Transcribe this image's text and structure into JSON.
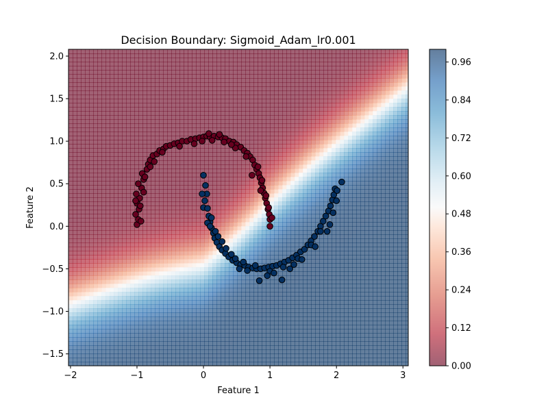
{
  "chart_data": {
    "type": "scatter",
    "title": "Decision Boundary: Sigmoid_Adam_lr0.001",
    "xlabel": "Feature 1",
    "ylabel": "Feature 2",
    "xlim": [
      -2.03,
      3.08
    ],
    "ylim": [
      -1.64,
      2.08
    ],
    "x_ticks": [
      -2,
      -1,
      0,
      1,
      2,
      3
    ],
    "y_ticks": [
      -1.5,
      -1.0,
      -0.5,
      0.0,
      0.5,
      1.0,
      1.5,
      2.0
    ],
    "x_tick_labels": [
      "−2",
      "−1",
      "0",
      "1",
      "2",
      "3"
    ],
    "y_tick_labels": [
      "−1.5",
      "−1.0",
      "−0.5",
      "0.0",
      "0.5",
      "1.0",
      "1.5",
      "2.0"
    ],
    "grid": false,
    "background": "filled contour of predicted probability, RdBu colormap, alpha 0.6",
    "colorbar": {
      "ticks": [
        0.0,
        0.12,
        0.24,
        0.36,
        0.48,
        0.6,
        0.72,
        0.84,
        0.96
      ],
      "tick_labels": [
        "0.00",
        "0.12",
        "0.24",
        "0.36",
        "0.48",
        "0.60",
        "0.72",
        "0.84",
        "0.96"
      ],
      "range": [
        0,
        1
      ]
    },
    "series": [
      {
        "class": 0,
        "color": "#67001f",
        "points": [
          [
            -1.0,
            0.02
          ],
          [
            -0.98,
            0.08
          ],
          [
            -1.02,
            0.14
          ],
          [
            -0.97,
            0.2
          ],
          [
            -1.0,
            0.27
          ],
          [
            -0.96,
            0.33
          ],
          [
            -1.01,
            0.38
          ],
          [
            -0.93,
            0.45
          ],
          [
            -0.98,
            0.5
          ],
          [
            -0.9,
            0.55
          ],
          [
            -0.92,
            0.62
          ],
          [
            -0.85,
            0.67
          ],
          [
            -0.83,
            0.73
          ],
          [
            -0.8,
            0.78
          ],
          [
            -0.76,
            0.83
          ],
          [
            -0.7,
            0.85
          ],
          [
            -0.66,
            0.89
          ],
          [
            -0.6,
            0.91
          ],
          [
            -0.56,
            0.94
          ],
          [
            -0.5,
            0.95
          ],
          [
            -0.44,
            0.97
          ],
          [
            -0.38,
            0.98
          ],
          [
            -0.32,
            1.0
          ],
          [
            -0.25,
            1.0
          ],
          [
            -0.19,
            1.02
          ],
          [
            -0.12,
            1.03
          ],
          [
            -0.06,
            1.04
          ],
          [
            0.0,
            1.05
          ],
          [
            0.05,
            1.06
          ],
          [
            0.1,
            1.05
          ],
          [
            0.16,
            1.06
          ],
          [
            0.22,
            1.05
          ],
          [
            0.28,
            1.04
          ],
          [
            0.33,
            1.03
          ],
          [
            0.39,
            1.0
          ],
          [
            0.45,
            0.99
          ],
          [
            0.5,
            0.96
          ],
          [
            0.56,
            0.93
          ],
          [
            0.61,
            0.89
          ],
          [
            0.66,
            0.86
          ],
          [
            0.7,
            0.82
          ],
          [
            0.74,
            0.78
          ],
          [
            0.77,
            0.72
          ],
          [
            0.8,
            0.67
          ],
          [
            0.83,
            0.62
          ],
          [
            0.85,
            0.57
          ],
          [
            0.87,
            0.51
          ],
          [
            0.89,
            0.45
          ],
          [
            0.91,
            0.39
          ],
          [
            0.93,
            0.33
          ],
          [
            0.95,
            0.27
          ],
          [
            0.97,
            0.2
          ],
          [
            0.99,
            0.14
          ],
          [
            1.0,
            0.08
          ],
          [
            1.0,
            0.0
          ],
          [
            -0.94,
            0.06
          ],
          [
            -0.95,
            0.24
          ],
          [
            -0.9,
            0.4
          ],
          [
            -0.88,
            0.58
          ],
          [
            -0.74,
            0.76
          ],
          [
            -0.62,
            0.87
          ],
          [
            -0.36,
            0.94
          ],
          [
            -0.02,
            1.0
          ],
          [
            0.13,
            1.01
          ],
          [
            0.31,
            0.99
          ],
          [
            0.48,
            0.92
          ],
          [
            0.64,
            0.82
          ],
          [
            0.82,
            0.7
          ],
          [
            0.88,
            0.54
          ],
          [
            0.94,
            0.36
          ],
          [
            0.98,
            0.22
          ],
          [
            0.08,
            1.09
          ],
          [
            0.24,
            1.08
          ],
          [
            -0.14,
            0.97
          ],
          [
            0.42,
            0.96
          ],
          [
            -0.8,
            0.7
          ],
          [
            0.73,
            0.6
          ],
          [
            -1.02,
            0.3
          ],
          [
            0.86,
            0.42
          ],
          [
            1.03,
            0.1
          ]
        ]
      },
      {
        "class": 1,
        "color": "#053061",
        "points": [
          [
            0.0,
            0.6
          ],
          [
            0.03,
            0.48
          ],
          [
            0.05,
            0.38
          ],
          [
            -0.02,
            0.38
          ],
          [
            0.0,
            0.22
          ],
          [
            0.06,
            0.21
          ],
          [
            0.08,
            0.12
          ],
          [
            0.1,
            0.05
          ],
          [
            0.12,
            -0.02
          ],
          [
            0.15,
            -0.08
          ],
          [
            0.17,
            -0.14
          ],
          [
            0.2,
            -0.19
          ],
          [
            0.24,
            -0.24
          ],
          [
            0.28,
            -0.28
          ],
          [
            0.33,
            -0.32
          ],
          [
            0.38,
            -0.36
          ],
          [
            0.44,
            -0.4
          ],
          [
            0.5,
            -0.43
          ],
          [
            0.56,
            -0.45
          ],
          [
            0.62,
            -0.46
          ],
          [
            0.68,
            -0.48
          ],
          [
            0.74,
            -0.49
          ],
          [
            0.8,
            -0.5
          ],
          [
            0.86,
            -0.5
          ],
          [
            0.92,
            -0.49
          ],
          [
            0.98,
            -0.48
          ],
          [
            1.04,
            -0.47
          ],
          [
            1.1,
            -0.46
          ],
          [
            1.16,
            -0.44
          ],
          [
            1.22,
            -0.42
          ],
          [
            1.28,
            -0.4
          ],
          [
            1.34,
            -0.37
          ],
          [
            1.4,
            -0.34
          ],
          [
            1.46,
            -0.3
          ],
          [
            1.52,
            -0.27
          ],
          [
            1.57,
            -0.22
          ],
          [
            1.62,
            -0.17
          ],
          [
            1.67,
            -0.12
          ],
          [
            1.72,
            -0.06
          ],
          [
            1.76,
            0.0
          ],
          [
            1.8,
            0.06
          ],
          [
            1.84,
            0.12
          ],
          [
            1.88,
            0.18
          ],
          [
            1.91,
            0.24
          ],
          [
            1.94,
            0.31
          ],
          [
            1.96,
            0.37
          ],
          [
            1.98,
            0.44
          ],
          [
            2.08,
            0.52
          ],
          [
            2.0,
            0.3
          ],
          [
            1.9,
            0.02
          ],
          [
            1.76,
            -0.06
          ],
          [
            1.62,
            -0.22
          ],
          [
            1.42,
            -0.38
          ],
          [
            1.2,
            -0.48
          ],
          [
            1.0,
            -0.53
          ],
          [
            0.78,
            -0.46
          ],
          [
            0.6,
            -0.42
          ],
          [
            0.42,
            -0.33
          ],
          [
            0.28,
            -0.18
          ],
          [
            0.18,
            -0.06
          ],
          [
            0.06,
            0.04
          ],
          [
            0.12,
            0.1
          ],
          [
            0.22,
            -0.12
          ],
          [
            0.34,
            -0.26
          ],
          [
            0.48,
            -0.38
          ],
          [
            0.66,
            -0.52
          ],
          [
            0.84,
            -0.64
          ],
          [
            1.06,
            -0.55
          ],
          [
            1.18,
            -0.63
          ],
          [
            1.3,
            -0.5
          ],
          [
            1.48,
            -0.39
          ],
          [
            1.68,
            -0.24
          ],
          [
            1.86,
            -0.06
          ],
          [
            1.95,
            0.16
          ],
          [
            2.01,
            0.42
          ],
          [
            0.02,
            0.3
          ],
          [
            0.1,
            0.0
          ],
          [
            0.54,
            -0.5
          ],
          [
            0.96,
            -0.58
          ],
          [
            1.36,
            -0.45
          ]
        ]
      }
    ]
  }
}
